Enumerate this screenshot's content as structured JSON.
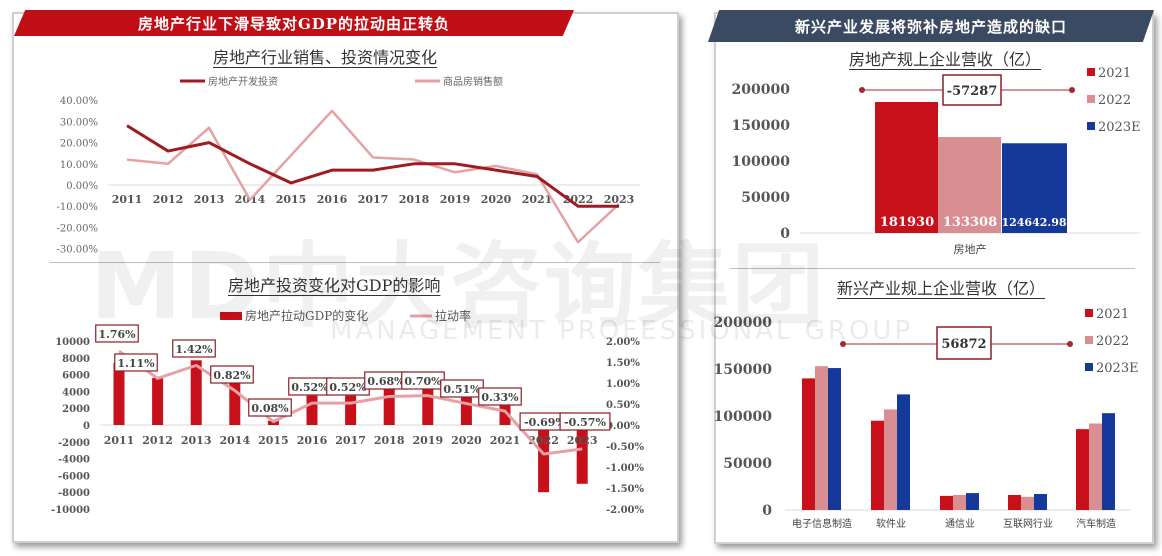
{
  "left": {
    "banner": "房地产行业下滑导致对GDP的拉动由正转负",
    "top_chart_title": "房地产行业销售、投资情况变化",
    "bottom_chart_title": "房地产投资变化对GDP的影响"
  },
  "right": {
    "banner": "新兴产业发展将弥补房地产造成的缺口",
    "top_chart_title": "房地产规上企业营收（亿）",
    "bottom_chart_title": "新兴产业规上企业营收（亿）"
  },
  "watermark": {
    "main": "MD中大咨询集团",
    "sub": "MANAGEMENT PROFESSIONAL GROUP"
  },
  "colors": {
    "red": "#c8101a",
    "dark_red": "#a01a22",
    "pink": "#d98e92",
    "light_pink": "#e5a1a4",
    "navy": "#14399a",
    "banner_red": "#c00d16",
    "banner_navy": "#3b4a63"
  },
  "chart_data": [
    {
      "type": "line",
      "title": "房地产行业销售、投资情况变化",
      "categories": [
        "2011",
        "2012",
        "2013",
        "2014",
        "2015",
        "2016",
        "2017",
        "2018",
        "2019",
        "2020",
        "2021",
        "2022",
        "2023"
      ],
      "series": [
        {
          "name": "房地产开发投资",
          "values": [
            28,
            16,
            20,
            10,
            1,
            7,
            7,
            10,
            10,
            7,
            4,
            -10,
            -10
          ]
        },
        {
          "name": "商品房销售额",
          "values": [
            12,
            10,
            27,
            -7,
            14,
            35,
            13,
            12,
            6,
            9,
            5,
            -27,
            -9
          ]
        }
      ],
      "yticks": [
        "40.00%",
        "30.00%",
        "20.00%",
        "10.00%",
        "0.00%",
        "-10.00%",
        "-20.00%",
        "-30.00%"
      ],
      "ylim": [
        -30,
        40
      ],
      "xlabel": "",
      "ylabel": "",
      "legend_position": "top"
    },
    {
      "type": "bar+line",
      "title": "房地产投资变化对GDP的影响",
      "categories": [
        "2011",
        "2012",
        "2013",
        "2014",
        "2015",
        "2016",
        "2017",
        "2018",
        "2019",
        "2020",
        "2021",
        "2022",
        "2023"
      ],
      "series": [
        {
          "name": "房地产拉动GDP的变化",
          "type": "bar",
          "axis": "left",
          "values": [
            7400,
            5600,
            7700,
            5000,
            500,
            3500,
            3500,
            4300,
            4300,
            3500,
            2400,
            -8000,
            -7000
          ]
        },
        {
          "name": "拉动率",
          "type": "line",
          "axis": "right",
          "values": [
            1.76,
            1.11,
            1.42,
            0.82,
            0.08,
            0.52,
            0.52,
            0.68,
            0.7,
            0.51,
            0.33,
            -0.69,
            -0.57
          ],
          "labels": [
            "1.76%",
            "1.11%",
            "1.42%",
            "0.82%",
            "0.08%",
            "0.52%",
            "0.52%",
            "0.68%",
            "0.70%",
            "0.51%",
            "0.33%",
            "-0.69%",
            "-0.57%"
          ]
        }
      ],
      "left_yticks": [
        "10000",
        "8000",
        "6000",
        "4000",
        "2000",
        "0",
        "-2000",
        "-4000",
        "-6000",
        "-8000",
        "-10000"
      ],
      "right_yticks": [
        "2.00%",
        "1.50%",
        "1.00%",
        "0.50%",
        "0.00%",
        "-0.50%",
        "-1.00%",
        "-1.50%",
        "-2.00%"
      ],
      "ylim_left": [
        -10000,
        10000
      ],
      "ylim_right": [
        -2,
        2
      ],
      "legend_position": "top"
    },
    {
      "type": "bar",
      "title": "房地产规上企业营收（亿）",
      "categories": [
        "房地产"
      ],
      "series": [
        {
          "name": "2021",
          "values": [
            181930
          ],
          "label": "181930"
        },
        {
          "name": "2022",
          "values": [
            133308
          ],
          "label": "133308"
        },
        {
          "name": "2023E",
          "values": [
            124642.98
          ],
          "label": "124642.98"
        }
      ],
      "annotation": "-57287",
      "yticks": [
        "200000",
        "150000",
        "100000",
        "50000",
        "0"
      ],
      "ylim": [
        0,
        200000
      ],
      "legend_position": "right"
    },
    {
      "type": "bar",
      "title": "新兴产业规上企业营收（亿）",
      "categories": [
        "电子信息制造",
        "软件业",
        "通信业",
        "互联网行业",
        "汽车制造"
      ],
      "series": [
        {
          "name": "2021",
          "values": [
            140000,
            95000,
            15000,
            16000,
            86000
          ]
        },
        {
          "name": "2022",
          "values": [
            153000,
            107000,
            16000,
            14000,
            92000
          ]
        },
        {
          "name": "2023E",
          "values": [
            151000,
            123000,
            18000,
            17000,
            103000
          ]
        }
      ],
      "annotation": "56872",
      "yticks": [
        "200000",
        "150000",
        "100000",
        "50000",
        "0"
      ],
      "ylim": [
        0,
        200000
      ],
      "legend_position": "right"
    }
  ]
}
